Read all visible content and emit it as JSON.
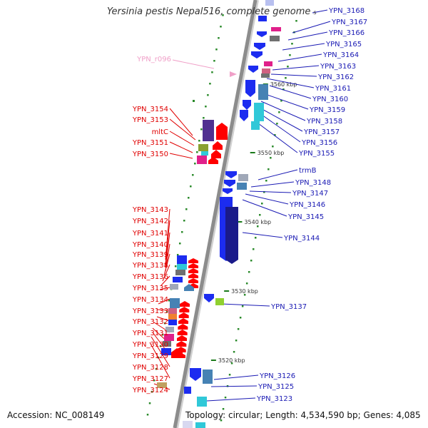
{
  "title": "Yersinia pestis Nepal516, complete genome",
  "title_suffix": "s",
  "footer": {
    "accession_label": "Accession:",
    "accession": "NC_008149",
    "topology_label": "Topology:",
    "topology": "circular",
    "length_label": "Length:",
    "length": "4,534,590 bp",
    "genes_label": "Genes:",
    "genes": "4,085"
  },
  "ticks": [
    "3560 kbp",
    "3550 kbp",
    "3540 kbp",
    "3530 kbp",
    "3520 kbp"
  ],
  "colors": {
    "backbone": "#8c8c8c",
    "forward_label": "#1a1ab4",
    "reverse_label": "#e00000",
    "rna_label": "#f0a0c8",
    "gene_blue": "#1c2cf0",
    "gene_navy": "#1a1a8a",
    "gene_cyan": "#30c8d8",
    "gene_steel": "#4682b4",
    "gene_red": "#ff0000",
    "gene_magenta": "#e0208a",
    "gene_olive": "#8aa030",
    "gene_grey": "#707070"
  },
  "labels_right": [
    "YPN_3168",
    "YPN_3167",
    "YPN_3166",
    "YPN_3165",
    "YPN_3164",
    "YPN_3163",
    "YPN_3162",
    "YPN_3161",
    "YPN_3160",
    "YPN_3159",
    "YPN_3158",
    "YPN_3157",
    "YPN_3156",
    "YPN_3155",
    "trmB",
    "YPN_3148",
    "YPN_3147",
    "YPN_3146",
    "YPN_3145",
    "YPN_3144",
    "YPN_3137",
    "YPN_3126",
    "YPN_3125",
    "YPN_3123"
  ],
  "labels_left": [
    "YPN_3154",
    "YPN_3153",
    "mltC",
    "YPN_3151",
    "YPN_3150",
    "YPN_3143",
    "YPN_3142",
    "YPN_3141",
    "YPN_3140",
    "YPN_3139",
    "YPN_3138",
    "YPN_3136",
    "YPN_3135",
    "YPN_3134",
    "YPN_3133",
    "YPN_3132",
    "YPN_3131",
    "YPN_3130",
    "YPN_3129",
    "YPN_3128",
    "YPN_3127",
    "YPN_3124"
  ],
  "label_rna": "YPN_r096"
}
